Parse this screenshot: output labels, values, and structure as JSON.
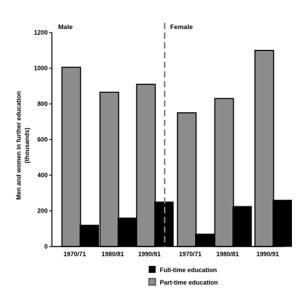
{
  "chart_data": {
    "type": "bar",
    "ylabel_line1": "Men and women in further education",
    "ylabel_line2": "(thousands)",
    "ylim": [
      0,
      1200
    ],
    "yticks": [
      0,
      200,
      400,
      600,
      800,
      1000,
      1200
    ],
    "groups": [
      {
        "panel": "Male",
        "category": "1970/71",
        "full_time": 120,
        "part_time": 1005
      },
      {
        "panel": "Male",
        "category": "1980/81",
        "full_time": 160,
        "part_time": 865
      },
      {
        "panel": "Male",
        "category": "1990/91",
        "full_time": 250,
        "part_time": 910
      },
      {
        "panel": "Female",
        "category": "1970/71",
        "full_time": 70,
        "part_time": 750
      },
      {
        "panel": "Female",
        "category": "1980/81",
        "full_time": 225,
        "part_time": 830
      },
      {
        "panel": "Female",
        "category": "1990/91",
        "full_time": 260,
        "part_time": 1100
      }
    ],
    "panels": [
      "Male",
      "Female"
    ],
    "series": [
      {
        "name": "Full-time education",
        "key": "full_time",
        "color": "#000000"
      },
      {
        "name": "Part-time education",
        "key": "part_time",
        "color": "#8c8c8c"
      }
    ],
    "legend_position": "bottom-right",
    "grid": false,
    "divider_style": "dashed"
  }
}
